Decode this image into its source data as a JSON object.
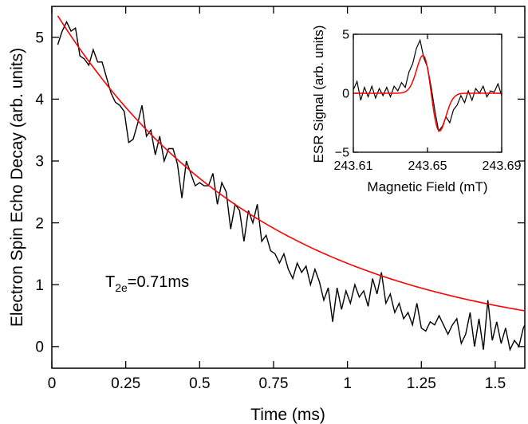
{
  "colors": {
    "data": "#000000",
    "fit": "#ff0000",
    "axes": "#000000"
  },
  "chart_data": [
    {
      "type": "line",
      "title": "",
      "xlabel": "Time (ms)",
      "ylabel": "Electron Spin Echo Decay (arb. units)",
      "xlim": [
        0,
        1.6
      ],
      "ylim": [
        -0.35,
        5.5
      ],
      "xticks": [
        0,
        0.25,
        0.5,
        0.75,
        1,
        1.25,
        1.5
      ],
      "xtick_labels": [
        "0",
        "0.25",
        "0.5",
        "0.75",
        "1",
        "1.25",
        "1.5"
      ],
      "yticks": [
        0,
        1,
        2,
        3,
        4,
        5
      ],
      "ytick_labels": [
        "0",
        "1",
        "2",
        "3",
        "4",
        "5"
      ],
      "annotation": {
        "main": "T",
        "sub": "2e",
        "rest": "=0.71ms"
      },
      "series": [
        {
          "kind": "data",
          "x": [
            0.02,
            0.035,
            0.05,
            0.065,
            0.08,
            0.095,
            0.11,
            0.125,
            0.14,
            0.155,
            0.17,
            0.185,
            0.2,
            0.215,
            0.23,
            0.245,
            0.26,
            0.275,
            0.29,
            0.305,
            0.32,
            0.335,
            0.35,
            0.365,
            0.38,
            0.395,
            0.41,
            0.425,
            0.44,
            0.455,
            0.47,
            0.485,
            0.5,
            0.515,
            0.53,
            0.545,
            0.56,
            0.575,
            0.59,
            0.605,
            0.62,
            0.635,
            0.65,
            0.665,
            0.68,
            0.695,
            0.71,
            0.725,
            0.74,
            0.755,
            0.77,
            0.785,
            0.8,
            0.815,
            0.83,
            0.845,
            0.86,
            0.875,
            0.89,
            0.905,
            0.92,
            0.935,
            0.95,
            0.965,
            0.98,
            0.995,
            1.01,
            1.025,
            1.04,
            1.055,
            1.07,
            1.085,
            1.1,
            1.115,
            1.13,
            1.145,
            1.16,
            1.175,
            1.19,
            1.205,
            1.22,
            1.235,
            1.25,
            1.265,
            1.28,
            1.295,
            1.31,
            1.325,
            1.34,
            1.355,
            1.37,
            1.385,
            1.4,
            1.415,
            1.43,
            1.445,
            1.46,
            1.475,
            1.49,
            1.505,
            1.52,
            1.535,
            1.55,
            1.565,
            1.58,
            1.595,
            1.6
          ],
          "y": [
            4.88,
            5.1,
            5.25,
            5.1,
            5.15,
            4.7,
            4.65,
            4.55,
            4.8,
            4.6,
            4.6,
            4.35,
            4.1,
            3.95,
            3.9,
            3.8,
            3.3,
            3.35,
            3.6,
            3.9,
            3.4,
            3.5,
            3.1,
            3.4,
            3.0,
            3.2,
            3.2,
            2.95,
            2.4,
            3.0,
            2.8,
            2.6,
            2.65,
            2.6,
            2.6,
            2.8,
            2.3,
            2.65,
            2.5,
            1.9,
            2.3,
            2.2,
            1.7,
            2.2,
            2.0,
            2.3,
            1.7,
            1.8,
            1.55,
            1.5,
            1.35,
            1.5,
            1.25,
            1.1,
            1.35,
            1.2,
            1.3,
            1.0,
            1.25,
            1.05,
            0.75,
            0.95,
            0.4,
            0.95,
            0.6,
            0.9,
            0.7,
            1.0,
            0.8,
            0.9,
            0.65,
            1.1,
            0.85,
            1.2,
            0.7,
            0.85,
            0.55,
            0.7,
            0.45,
            0.55,
            0.35,
            0.7,
            0.3,
            0.25,
            0.4,
            0.35,
            0.5,
            0.35,
            0.2,
            0.35,
            0.45,
            0.05,
            0.2,
            0.55,
            0.0,
            0.45,
            -0.05,
            0.75,
            0.1,
            0.4,
            0.05,
            0.3,
            -0.05,
            0.1,
            0.0,
            0.3,
            0.35
          ]
        },
        {
          "kind": "fit",
          "function": "A*exp(-x/tau)",
          "A": 5.5,
          "tau": 0.71,
          "x_start": 0.02,
          "x_end": 1.6
        }
      ]
    },
    {
      "type": "line",
      "title": "",
      "xlabel": "Magnetic Field (mT)",
      "ylabel": "ESR Signal (arb. units)",
      "xlim": [
        243.61,
        243.69
      ],
      "ylim": [
        -5,
        5
      ],
      "xticks": [
        243.61,
        243.65,
        243.69
      ],
      "xtick_labels": [
        "243.61",
        "243.65",
        "243.69"
      ],
      "yticks": [
        -5,
        0,
        5
      ],
      "ytick_labels": [
        "−5",
        "0",
        "5"
      ],
      "series": [
        {
          "kind": "data",
          "x": [
            243.61,
            243.612,
            243.614,
            243.616,
            243.618,
            243.62,
            243.622,
            243.624,
            243.626,
            243.628,
            243.63,
            243.632,
            243.634,
            243.636,
            243.638,
            243.64,
            243.642,
            243.644,
            243.646,
            243.648,
            243.65,
            243.652,
            243.654,
            243.656,
            243.658,
            243.66,
            243.662,
            243.664,
            243.666,
            243.668,
            243.67,
            243.672,
            243.674,
            243.676,
            243.678,
            243.68,
            243.682,
            243.684,
            243.686,
            243.688,
            243.69
          ],
          "y": [
            0.3,
            1.0,
            -0.6,
            0.5,
            -0.3,
            0.6,
            -0.4,
            0.4,
            -0.2,
            0.5,
            -0.3,
            0.6,
            0.2,
            0.9,
            0.5,
            1.8,
            2.5,
            3.8,
            4.5,
            3.0,
            2.2,
            0.5,
            -1.5,
            -3.2,
            -2.8,
            -2.0,
            -2.5,
            -1.4,
            -1.0,
            -0.2,
            -0.8,
            0.2,
            -0.6,
            0.4,
            0.0,
            0.6,
            -0.3,
            0.2,
            0.1,
            0.8,
            -0.2
          ]
        },
        {
          "kind": "fit",
          "function": "derivative-gaussian",
          "center": 243.652,
          "width": 0.0045,
          "amplitude": 3.2
        }
      ]
    }
  ]
}
